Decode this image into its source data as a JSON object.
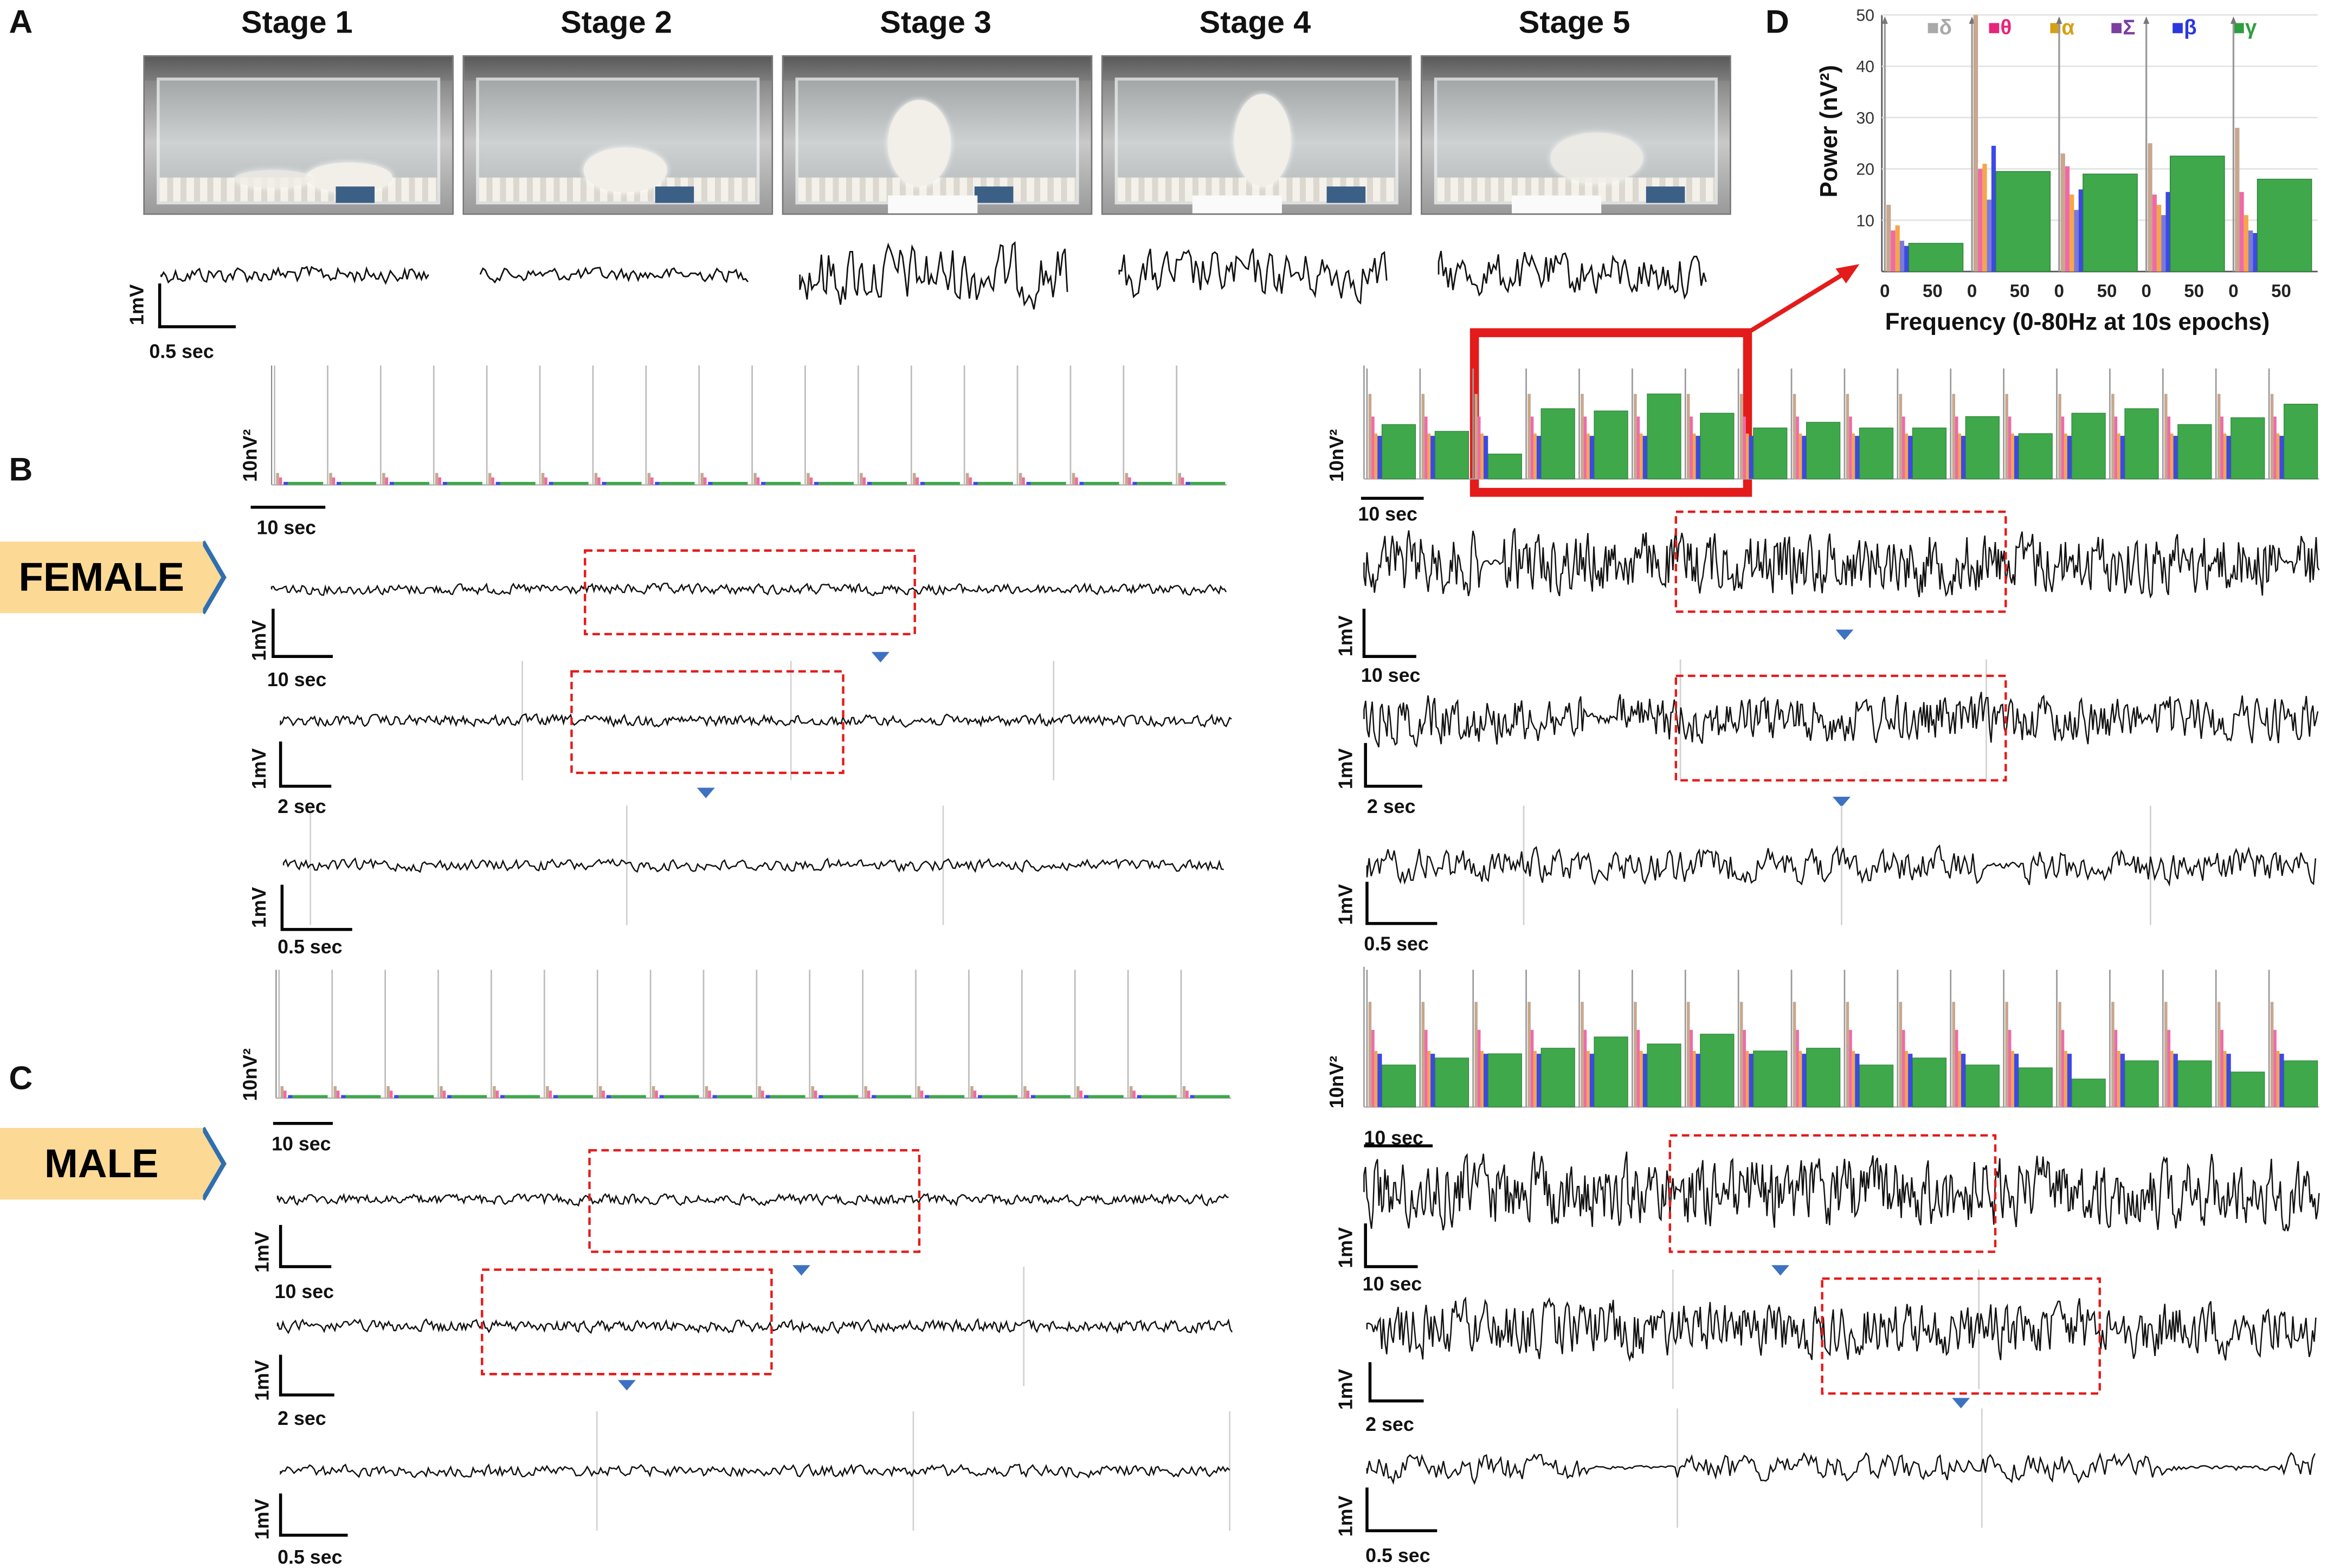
{
  "panels": {
    "a": "A",
    "b": "B",
    "c": "C",
    "d": "D"
  },
  "stages": [
    "Stage 1",
    "Stage 2",
    "Stage 3",
    "Stage 4",
    "Stage 5"
  ],
  "scale": {
    "mv": "1mV",
    "sec_0_5": "0.5 sec",
    "sec_2": "2 sec",
    "sec_10": "10 sec",
    "power_10nv2": "10nV²"
  },
  "groups": {
    "female": "FEMALE",
    "male": "MALE"
  },
  "chart_data": {
    "type": "bar",
    "ylabel": "Power (nV²)",
    "xlabel": "Frequency (0-80Hz at 10s epochs)",
    "ylim": [
      0,
      50
    ],
    "yticks": [
      10,
      20,
      30,
      40,
      50
    ],
    "xticks": [
      "0",
      "50"
    ],
    "legend": [
      {
        "symbol": "■",
        "label": "δ",
        "color": "#a9a9a9"
      },
      {
        "symbol": "■",
        "label": "θ",
        "color": "#e8237a"
      },
      {
        "symbol": "■",
        "label": "α",
        "color": "#d4a017"
      },
      {
        "symbol": "■",
        "label": "Σ",
        "color": "#7b3fa0"
      },
      {
        "symbol": "■",
        "label": "β",
        "color": "#2b37e0"
      },
      {
        "symbol": "■",
        "label": "γ",
        "color": "#2e9e3e"
      }
    ],
    "band_colors": {
      "delta": "#c7a78e",
      "theta": "#f06aa6",
      "alpha": "#f5a64a",
      "sigma": "#7a7ad8",
      "beta": "#3c49e6",
      "gamma": "#3ea84b"
    },
    "series": [
      {
        "epoch": 1,
        "delta": 13,
        "theta": 8,
        "alpha": 9,
        "sigma": 6,
        "beta": 5,
        "gamma": 5.5
      },
      {
        "epoch": 2,
        "delta": 50,
        "theta": 20,
        "alpha": 21,
        "sigma": 14,
        "beta": 24.5,
        "gamma": 19.5
      },
      {
        "epoch": 3,
        "delta": 23,
        "theta": 20.5,
        "alpha": 15,
        "sigma": 12,
        "beta": 16,
        "gamma": 19
      },
      {
        "epoch": 4,
        "delta": 25,
        "theta": 15,
        "alpha": 13,
        "sigma": 11,
        "beta": 15.5,
        "gamma": 22.5
      },
      {
        "epoch": 5,
        "delta": 28,
        "theta": 15.5,
        "alpha": 11,
        "sigma": 8,
        "beta": 7.5,
        "gamma": 18
      }
    ]
  }
}
